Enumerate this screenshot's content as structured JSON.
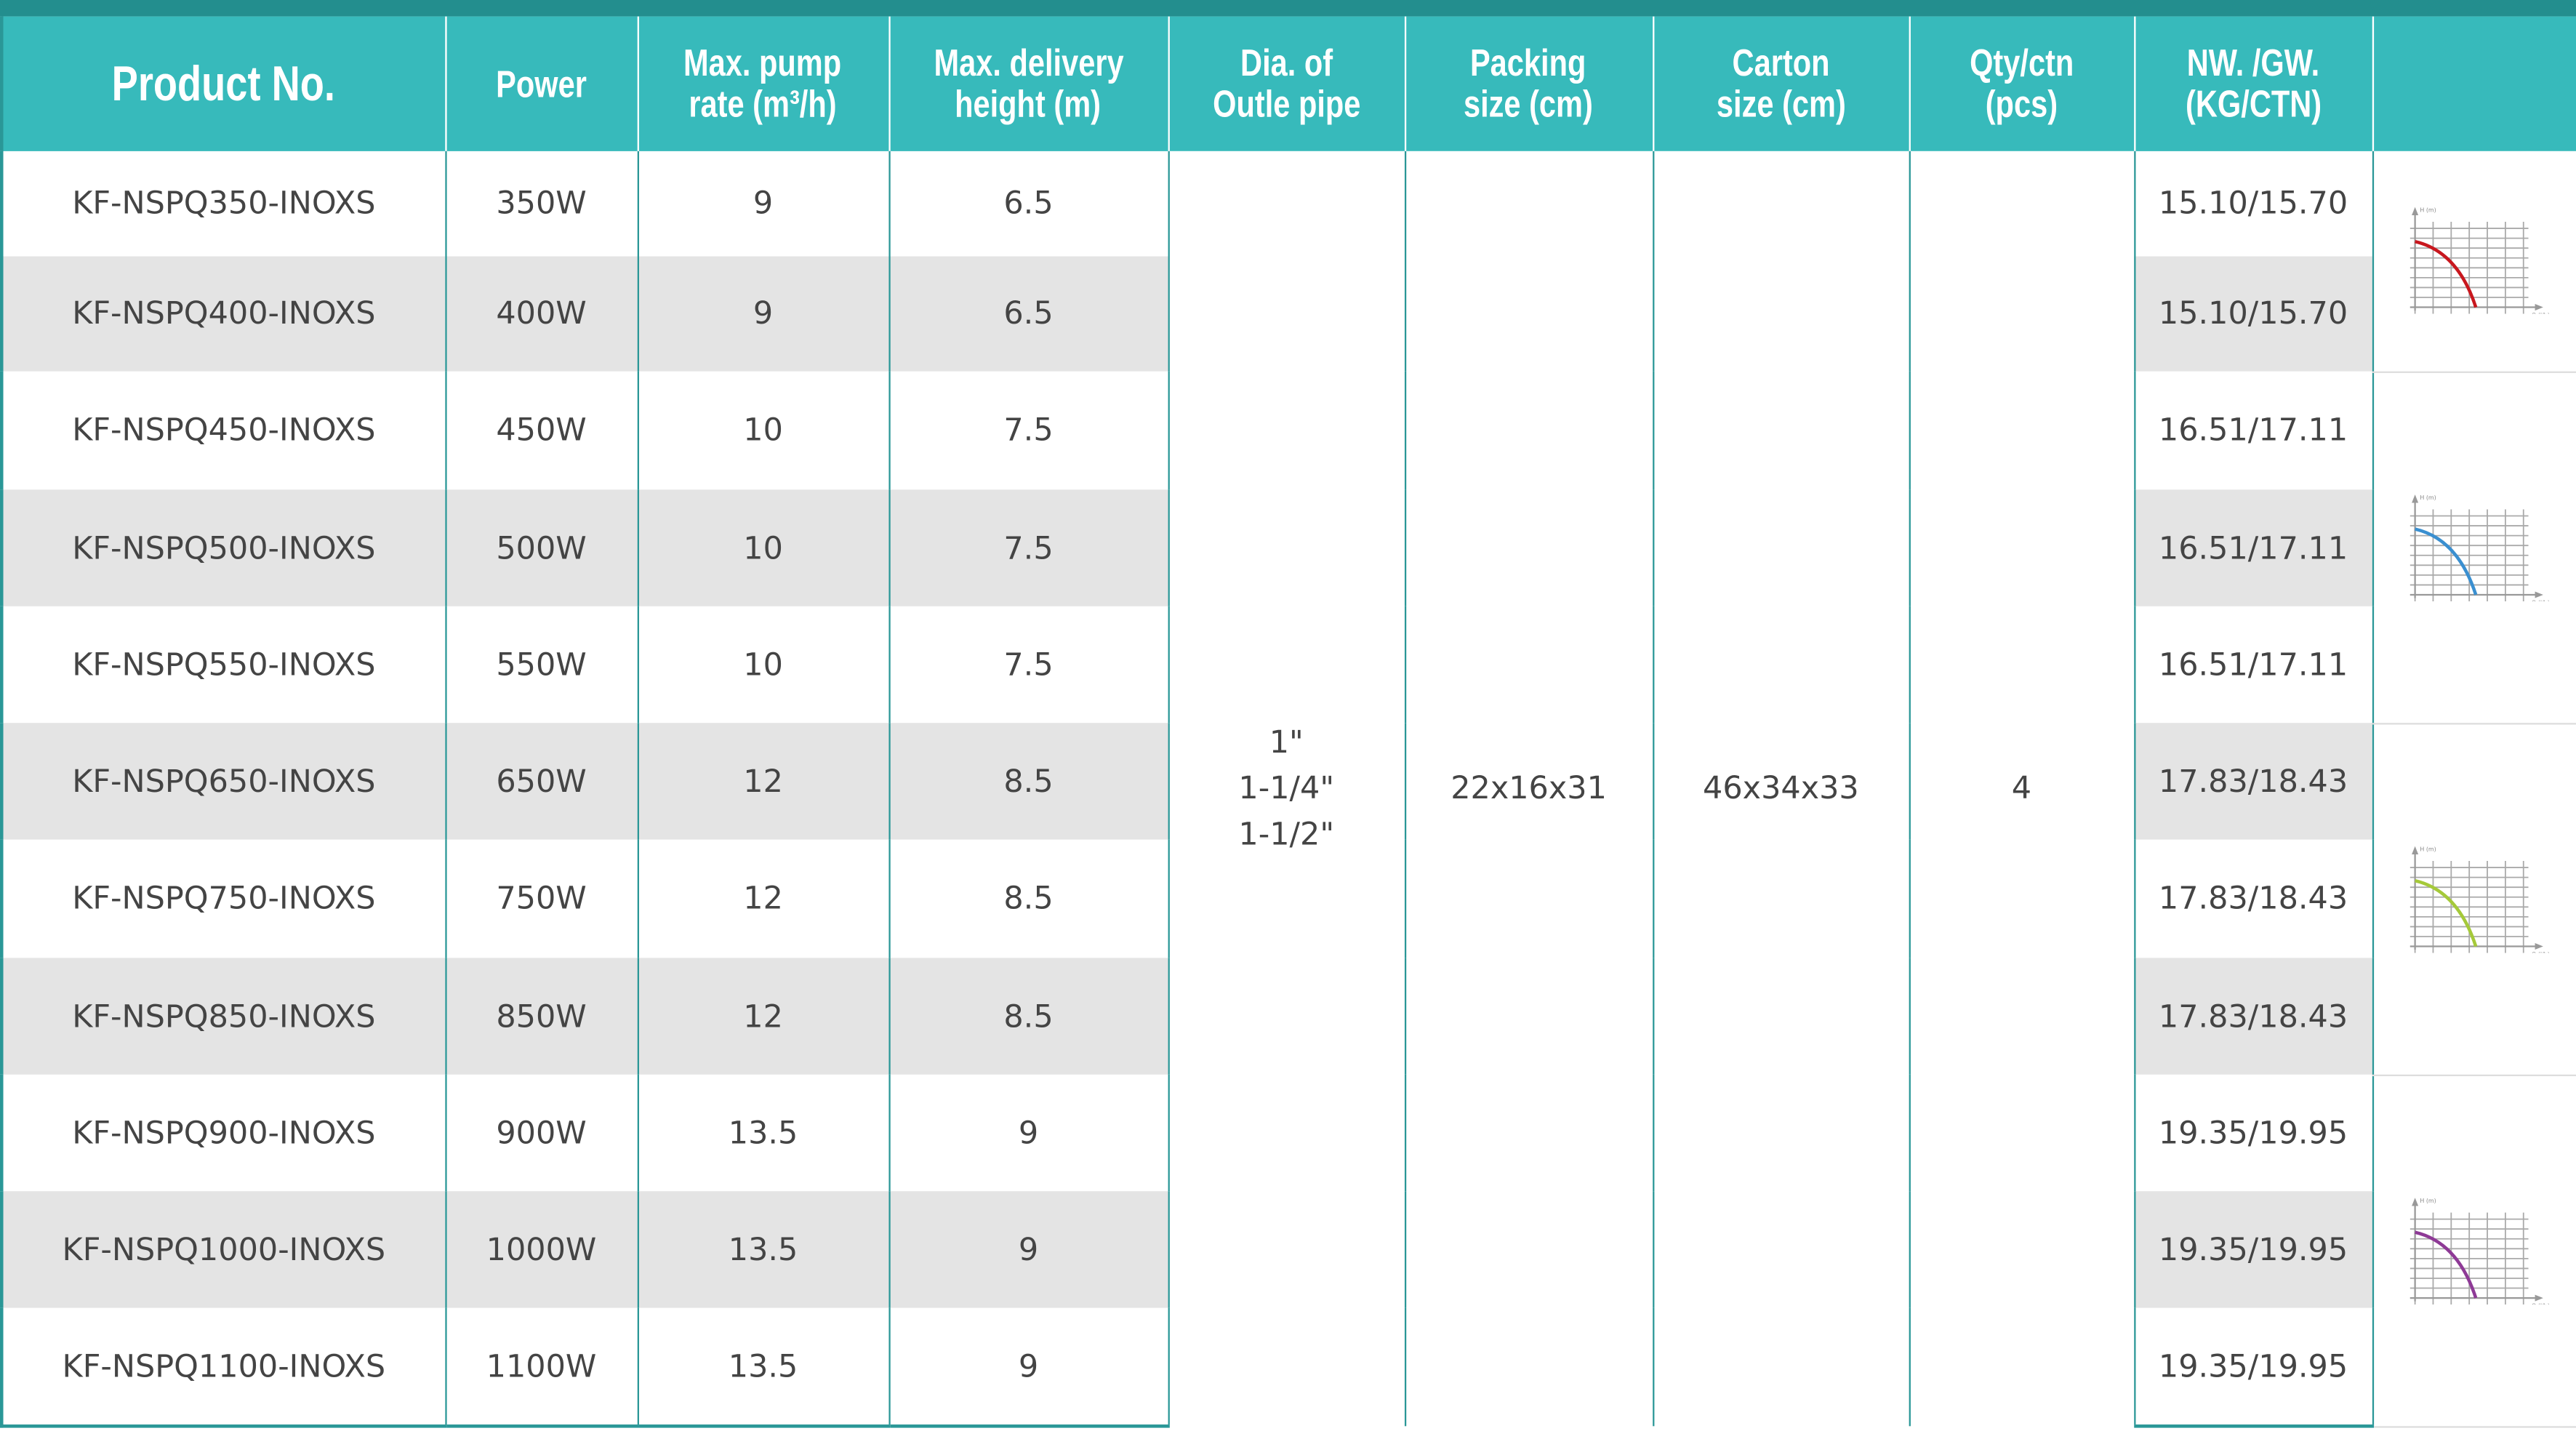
{
  "headers": [
    "Product No.",
    "Power",
    "Max. pump rate (m³/h)",
    "Max. delivery height (m)",
    "Dia. of Outle pipe",
    "Packing size (cm)",
    "Carton size (cm)",
    "Qty/ctn (pcs)",
    "NW. /GW. (KG/CTN)",
    ""
  ],
  "header_lines": [
    [
      "Product No."
    ],
    [
      "Power"
    ],
    [
      "Max. pump",
      "rate (m³/h)"
    ],
    [
      "Max. delivery",
      "height (m)"
    ],
    [
      "Dia. of",
      "Outle pipe"
    ],
    [
      "Packing",
      "size (cm)"
    ],
    [
      "Carton",
      "size (cm)"
    ],
    [
      "Qty/ctn",
      "(pcs)"
    ],
    [
      "NW. /GW.",
      "(KG/CTN)"
    ]
  ],
  "rows": [
    {
      "product": "KF-NSPQ350-INOXS",
      "power": "350W",
      "rate": "9",
      "height": "6.5",
      "weight": "15.10/15.70"
    },
    {
      "product": "KF-NSPQ400-INOXS",
      "power": "400W",
      "rate": "9",
      "height": "6.5",
      "weight": "15.10/15.70"
    },
    {
      "product": "KF-NSPQ450-INOXS",
      "power": "450W",
      "rate": "10",
      "height": "7.5",
      "weight": "16.51/17.11"
    },
    {
      "product": "KF-NSPQ500-INOXS",
      "power": "500W",
      "rate": "10",
      "height": "7.5",
      "weight": "16.51/17.11"
    },
    {
      "product": "KF-NSPQ550-INOXS",
      "power": "550W",
      "rate": "10",
      "height": "7.5",
      "weight": "16.51/17.11"
    },
    {
      "product": "KF-NSPQ650-INOXS",
      "power": "650W",
      "rate": "12",
      "height": "8.5",
      "weight": "17.83/18.43"
    },
    {
      "product": "KF-NSPQ750-INOXS",
      "power": "750W",
      "rate": "12",
      "height": "8.5",
      "weight": "17.83/18.43"
    },
    {
      "product": "KF-NSPQ850-INOXS",
      "power": "850W",
      "rate": "12",
      "height": "8.5",
      "weight": "17.83/18.43"
    },
    {
      "product": "KF-NSPQ900-INOXS",
      "power": "900W",
      "rate": "13.5",
      "height": "9",
      "weight": "19.35/19.95"
    },
    {
      "product": "KF-NSPQ1000-INOXS",
      "power": "1000W",
      "rate": "13.5",
      "height": "9",
      "weight": "19.35/19.95"
    },
    {
      "product": "KF-NSPQ1100-INOXS",
      "power": "1100W",
      "rate": "13.5",
      "height": "9",
      "weight": "19.35/19.95"
    }
  ],
  "shared": {
    "pipe": [
      "1\"",
      "1-1/4\"",
      "1-1/2\""
    ],
    "packing": "22x16x31",
    "carton": "46x34x33",
    "qty": "4"
  },
  "curves": {
    "y_label": "H (m)",
    "x_label": "Q (l/h)",
    "groups": [
      {
        "rows": 2,
        "color": "#c8171e"
      },
      {
        "rows": 3,
        "color": "#3a8fd0"
      },
      {
        "rows": 3,
        "color": "#a5c93a"
      },
      {
        "rows": 3,
        "color": "#8e3a96"
      }
    ]
  },
  "colors": {
    "header": "#37babb",
    "top_bar": "#238e8e",
    "stripe": "#e4e4e4",
    "border": "#2a9797"
  }
}
